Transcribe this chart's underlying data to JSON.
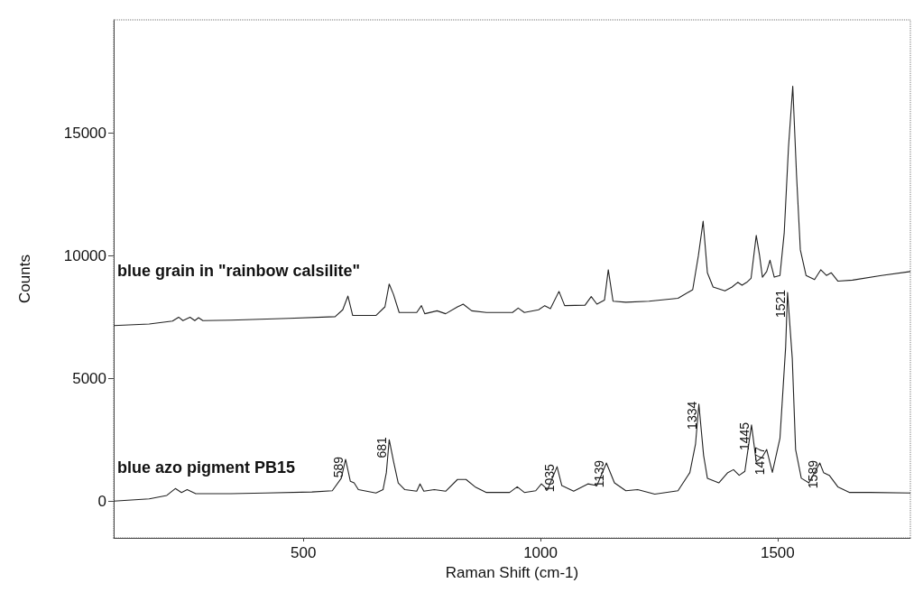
{
  "chart_data": {
    "type": "line",
    "xlabel": "Raman Shift (cm-1)",
    "ylabel": "Counts",
    "xlim": [
      100,
      1780
    ],
    "xticks": [
      500,
      1000,
      1500
    ],
    "ylim": [
      -1500,
      19600
    ],
    "yticks": [
      0,
      5000,
      10000,
      15000
    ],
    "grid": false,
    "legend": false,
    "marker": "none",
    "line_style": "solid",
    "series": [
      {
        "name": "blue grain in \"rainbow calsilite\"",
        "color": "#222222",
        "x": [
          100,
          175,
          224,
          237,
          246,
          261,
          271,
          279,
          288,
          347,
          469,
          567,
          583,
          594,
          604,
          653,
          672,
          681,
          690,
          702,
          739,
          749,
          756,
          782,
          800,
          825,
          837,
          855,
          886,
          941,
          953,
          966,
          996,
          1009,
          1021,
          1039,
          1051,
          1094,
          1107,
          1119,
          1135,
          1143,
          1153,
          1180,
          1229,
          1290,
          1321,
          1333,
          1343,
          1352,
          1364,
          1389,
          1404,
          1416,
          1425,
          1435,
          1444,
          1455,
          1462,
          1468,
          1477,
          1484,
          1493,
          1505,
          1514,
          1523,
          1532,
          1540,
          1548,
          1560,
          1578,
          1591,
          1603,
          1613,
          1627,
          1658,
          1719,
          1780
        ],
        "values": [
          7150,
          7210,
          7330,
          7490,
          7350,
          7490,
          7350,
          7470,
          7350,
          7370,
          7440,
          7510,
          7790,
          8350,
          7560,
          7560,
          7910,
          8840,
          8420,
          7680,
          7680,
          7960,
          7630,
          7750,
          7630,
          7910,
          8020,
          7750,
          7680,
          7680,
          7860,
          7680,
          7790,
          7960,
          7840,
          8540,
          7960,
          7980,
          8330,
          8020,
          8190,
          9420,
          8140,
          8100,
          8140,
          8260,
          8610,
          10000,
          11400,
          9300,
          8720,
          8560,
          8720,
          8910,
          8790,
          8910,
          9070,
          10820,
          10000,
          9120,
          9350,
          9810,
          9120,
          9190,
          10930,
          14420,
          16900,
          13260,
          10230,
          9190,
          9020,
          9420,
          9190,
          9300,
          8960,
          9000,
          9190,
          9350
        ]
      },
      {
        "name": "blue azo pigment PB15",
        "color": "#222222",
        "x": [
          100,
          175,
          212,
          230,
          243,
          255,
          273,
          347,
          420,
          518,
          561,
          580,
          589,
          599,
          607,
          616,
          653,
          668,
          675,
          681,
          690,
          700,
          714,
          739,
          746,
          754,
          776,
          800,
          825,
          843,
          862,
          886,
          935,
          951,
          966,
          990,
          1002,
          1015,
          1035,
          1045,
          1070,
          1100,
          1119,
          1139,
          1156,
          1180,
          1205,
          1241,
          1290,
          1315,
          1327,
          1334,
          1344,
          1352,
          1376,
          1395,
          1407,
          1419,
          1431,
          1445,
          1455,
          1468,
          1477,
          1489,
          1505,
          1517,
          1521,
          1531,
          1538,
          1550,
          1566,
          1589,
          1597,
          1609,
          1627,
          1652,
          1695,
          1780
        ],
        "values": [
          0,
          90,
          230,
          510,
          350,
          465,
          300,
          300,
          330,
          370,
          420,
          930,
          1700,
          810,
          740,
          465,
          330,
          465,
          1160,
          2500,
          1630,
          740,
          465,
          400,
          700,
          400,
          465,
          400,
          880,
          880,
          580,
          350,
          350,
          580,
          350,
          420,
          700,
          465,
          1400,
          630,
          400,
          700,
          630,
          1550,
          740,
          420,
          465,
          280,
          420,
          1160,
          2330,
          3950,
          1860,
          930,
          740,
          1160,
          1280,
          1050,
          1210,
          3100,
          1600,
          1800,
          2100,
          1170,
          2560,
          6280,
          8500,
          5800,
          2100,
          930,
          740,
          1550,
          1160,
          1050,
          580,
          350,
          350,
          330
        ]
      }
    ],
    "annotations": [
      {
        "text": "589",
        "x": 589,
        "y": 1700
      },
      {
        "text": "681",
        "x": 681,
        "y": 2500
      },
      {
        "text": "1035",
        "x": 1035,
        "y": 1400
      },
      {
        "text": "1139",
        "x": 1139,
        "y": 1550
      },
      {
        "text": "1334",
        "x": 1334,
        "y": 3950
      },
      {
        "text": "1445",
        "x": 1445,
        "y": 3100
      },
      {
        "text": "1477",
        "x": 1477,
        "y": 2100
      },
      {
        "text": "1521",
        "x": 1521,
        "y": 8500
      },
      {
        "text": "1589",
        "x": 1589,
        "y": 1550
      }
    ]
  }
}
